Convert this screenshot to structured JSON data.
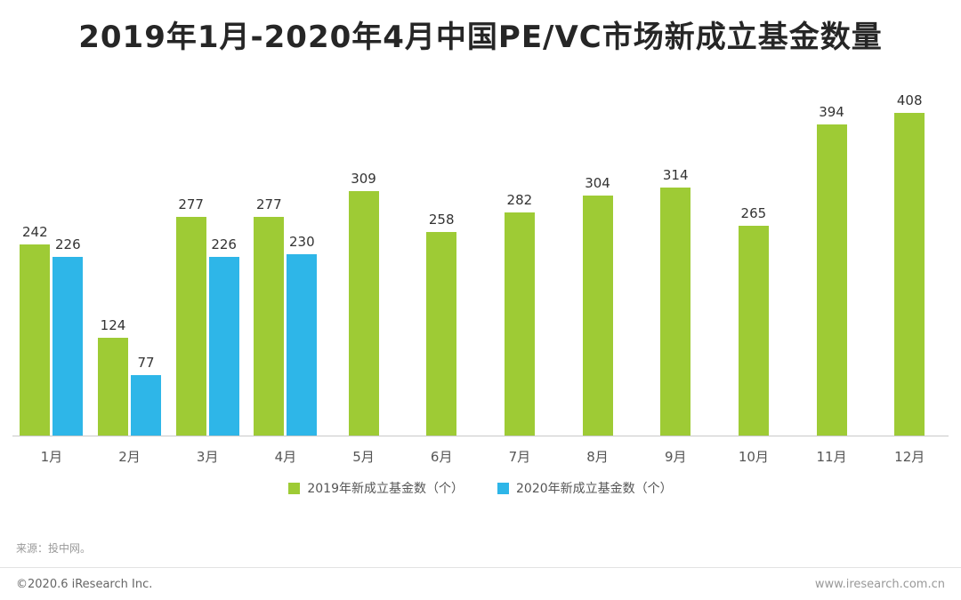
{
  "title": "2019年1月-2020年4月中国PE/VC市场新成立基金数量",
  "chart_data": {
    "type": "bar",
    "categories": [
      "1月",
      "2月",
      "3月",
      "4月",
      "5月",
      "6月",
      "7月",
      "8月",
      "9月",
      "10月",
      "11月",
      "12月"
    ],
    "series": [
      {
        "name": "2019年新成立基金数（个）",
        "color": "#9ecb35",
        "values": [
          242,
          124,
          277,
          277,
          309,
          258,
          282,
          304,
          314,
          265,
          394,
          408
        ]
      },
      {
        "name": "2020年新成立基金数（个）",
        "color": "#2eb6e8",
        "values": [
          226,
          77,
          226,
          230,
          null,
          null,
          null,
          null,
          null,
          null,
          null,
          null
        ]
      }
    ],
    "ylim": [
      0,
      450
    ],
    "grid": false,
    "legend_position": "bottom",
    "xlabel": "",
    "ylabel": ""
  },
  "source": "来源：投中网。",
  "footer": {
    "left": "©2020.6 iResearch Inc.",
    "right": "www.iresearch.com.cn"
  },
  "colors": {
    "green": "#9ecb35",
    "blue": "#2eb6e8",
    "axis_line": "#c9c9c9",
    "title_text": "#262626",
    "value_text": "#333333"
  }
}
